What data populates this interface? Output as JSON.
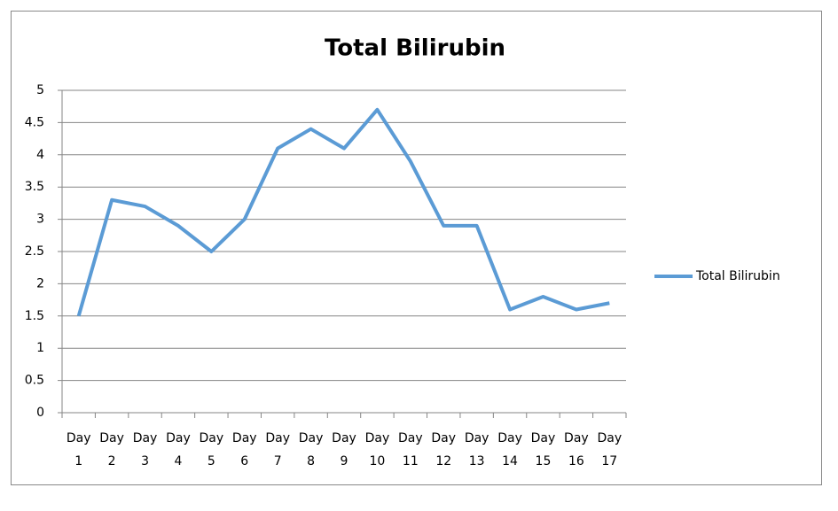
{
  "chart_data": {
    "type": "line",
    "title": "Total Bilirubin",
    "categories": [
      "Day 1",
      "Day 2",
      "Day 3",
      "Day 4",
      "Day 5",
      "Day 6",
      "Day 7",
      "Day 8",
      "Day 9",
      "Day 10",
      "Day 11",
      "Day 12",
      "Day 13",
      "Day 14",
      "Day 15",
      "Day 16",
      "Day 17"
    ],
    "series": [
      {
        "name": "Total Bilirubin",
        "color": "#5b9bd5",
        "values": [
          1.5,
          3.3,
          3.2,
          2.9,
          2.5,
          3.0,
          4.1,
          4.4,
          4.1,
          4.7,
          3.9,
          2.9,
          2.9,
          1.6,
          1.8,
          1.6,
          1.7
        ]
      }
    ],
    "ylim": [
      0,
      5
    ],
    "yticks": [
      0,
      0.5,
      1,
      1.5,
      2,
      2.5,
      3,
      3.5,
      4,
      4.5,
      5
    ],
    "grid": true,
    "legend": "right"
  }
}
